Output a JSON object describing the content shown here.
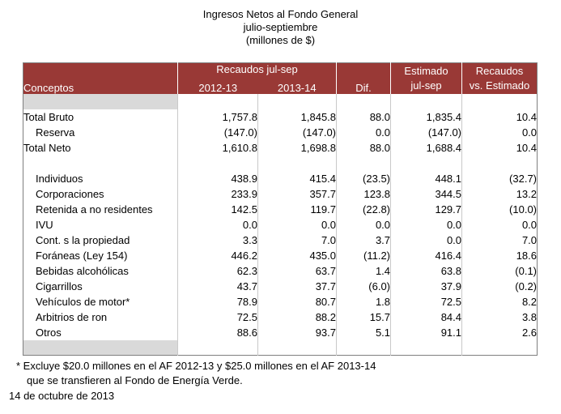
{
  "title": {
    "line1": "Ingresos Netos al Fondo General",
    "line2": "julio-septiembre",
    "line3": "(millones de $)"
  },
  "table": {
    "header": {
      "conceptos": "Conceptos",
      "group_recaudos": "Recaudos jul-sep",
      "col_2012": "2012-13",
      "col_2013": "2013-14",
      "dif": "Dif.",
      "estimado_line1": "Estimado",
      "estimado_line2": "jul-sep",
      "vs_line1": "Recaudos",
      "vs_line2": "vs. Estimado"
    },
    "columns": [
      "Conceptos",
      "2012-13",
      "2013-14",
      "Dif.",
      "Estimado jul-sep",
      "Recaudos vs. Estimado"
    ],
    "rows": [
      {
        "label": "",
        "indent": false,
        "gray": true,
        "values": [
          "",
          "",
          "",
          "",
          ""
        ]
      },
      {
        "label": "Total Bruto",
        "indent": false,
        "gray": false,
        "values": [
          "1,757.8",
          "1,845.8",
          "88.0",
          "1,835.4",
          "10.4"
        ]
      },
      {
        "label": "Reserva",
        "indent": true,
        "gray": false,
        "values": [
          "(147.0)",
          "(147.0)",
          "0.0",
          "(147.0)",
          "0.0"
        ]
      },
      {
        "label": "Total Neto",
        "indent": false,
        "gray": false,
        "values": [
          "1,610.8",
          "1,698.8",
          "88.0",
          "1,688.4",
          "10.4"
        ]
      },
      {
        "label": "",
        "indent": false,
        "gray": false,
        "values": [
          "",
          "",
          "",
          "",
          ""
        ]
      },
      {
        "label": "Individuos",
        "indent": true,
        "gray": false,
        "values": [
          "438.9",
          "415.4",
          "(23.5)",
          "448.1",
          "(32.7)"
        ]
      },
      {
        "label": "Corporaciones",
        "indent": true,
        "gray": false,
        "values": [
          "233.9",
          "357.7",
          "123.8",
          "344.5",
          "13.2"
        ]
      },
      {
        "label": "Retenida a no residentes",
        "indent": true,
        "gray": false,
        "values": [
          "142.5",
          "119.7",
          "(22.8)",
          "129.7",
          "(10.0)"
        ]
      },
      {
        "label": "IVU",
        "indent": true,
        "gray": false,
        "values": [
          "0.0",
          "0.0",
          "0.0",
          "0.0",
          "0.0"
        ]
      },
      {
        "label": "Cont. s la propiedad",
        "indent": true,
        "gray": false,
        "values": [
          "3.3",
          "7.0",
          "3.7",
          "0.0",
          "7.0"
        ]
      },
      {
        "label": "Foráneas (Ley 154)",
        "indent": true,
        "gray": false,
        "values": [
          "446.2",
          "435.0",
          "(11.2)",
          "416.4",
          "18.6"
        ]
      },
      {
        "label": "Bebidas alcohólicas",
        "indent": true,
        "gray": false,
        "values": [
          "62.3",
          "63.7",
          "1.4",
          "63.8",
          "(0.1)"
        ]
      },
      {
        "label": "Cigarrillos",
        "indent": true,
        "gray": false,
        "values": [
          "43.7",
          "37.7",
          "(6.0)",
          "37.9",
          "(0.2)"
        ]
      },
      {
        "label": "Vehículos de motor*",
        "indent": true,
        "gray": false,
        "values": [
          "78.9",
          "80.7",
          "1.8",
          "72.5",
          "8.2"
        ]
      },
      {
        "label": "Arbitrios de ron",
        "indent": true,
        "gray": false,
        "values": [
          "72.5",
          "88.2",
          "15.7",
          "84.4",
          "3.8"
        ]
      },
      {
        "label": "Otros",
        "indent": true,
        "gray": false,
        "values": [
          "88.6",
          "93.7",
          "5.1",
          "91.1",
          "2.6"
        ]
      },
      {
        "label": "",
        "indent": false,
        "gray": true,
        "values": [
          "",
          "",
          "",
          "",
          ""
        ]
      }
    ]
  },
  "footnotes": {
    "line1": "* Excluye $20.0 millones en el AF 2012-13 y $25.0 millones en el AF 2013-14",
    "line2": "que se transfieren al Fondo de Energía Verde.",
    "date": "14 de octubre de 2013"
  },
  "colors": {
    "header_bg": "#993936",
    "header_text": "#ffffff",
    "negative_value": "#ff0000",
    "gray_cell": "#d9d9d9",
    "grid_line": "#c9c9c9",
    "outer_border": "#7f7f7f"
  }
}
